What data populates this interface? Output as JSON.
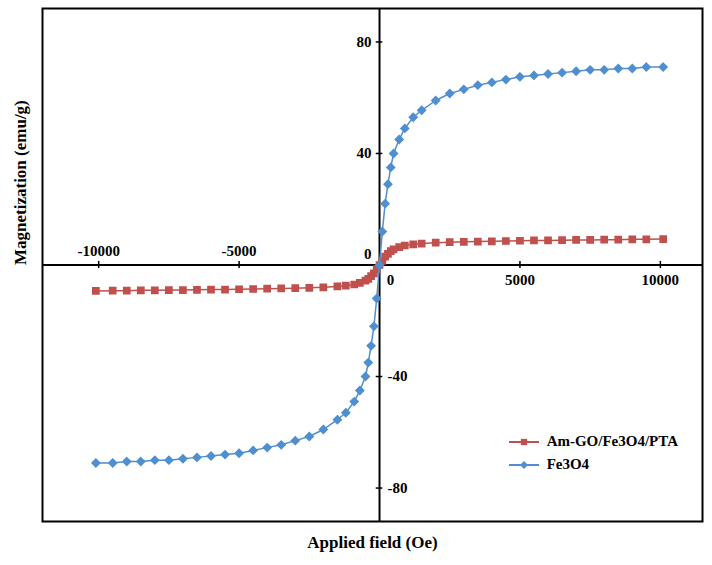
{
  "chart_data": {
    "type": "line",
    "xlabel": "Applied field (Oe)",
    "ylabel": "Magnetization (emu/g)",
    "x": [
      -10100,
      -9500,
      -9000,
      -8500,
      -8000,
      -7500,
      -7000,
      -6500,
      -6000,
      -5500,
      -5000,
      -4500,
      -4000,
      -3500,
      -3000,
      -2500,
      -2000,
      -1500,
      -1200,
      -900,
      -700,
      -500,
      -400,
      -300,
      -200,
      -100,
      0,
      100,
      200,
      300,
      400,
      500,
      700,
      900,
      1200,
      1500,
      2000,
      2500,
      3000,
      3500,
      4000,
      4500,
      5000,
      5500,
      6000,
      6500,
      7000,
      7500,
      8000,
      8500,
      9000,
      9500,
      10100
    ],
    "series": [
      {
        "name": "Am-GO/Fe3O4/PTA",
        "color": "#c0504d",
        "marker": "square",
        "values": [
          -9.3,
          -9.2,
          -9.2,
          -9.1,
          -9.1,
          -9,
          -9,
          -8.9,
          -8.8,
          -8.8,
          -8.7,
          -8.6,
          -8.5,
          -8.4,
          -8.3,
          -8.2,
          -8,
          -7.7,
          -7.4,
          -7,
          -6.4,
          -5.6,
          -5,
          -4,
          -3,
          -1.5,
          0,
          1.5,
          3,
          4,
          5,
          5.6,
          6.4,
          7,
          7.4,
          7.7,
          8,
          8.2,
          8.3,
          8.4,
          8.5,
          8.6,
          8.7,
          8.8,
          8.8,
          8.9,
          9,
          9,
          9.1,
          9.1,
          9.2,
          9.2,
          9.3
        ]
      },
      {
        "name": "Fe3O4",
        "color": "#4f8fd0",
        "marker": "diamond",
        "values": [
          -71,
          -71,
          -70.5,
          -70.5,
          -70,
          -70,
          -69.5,
          -69,
          -68.5,
          -68,
          -67.5,
          -66.5,
          -65.5,
          -64.5,
          -63,
          -61.5,
          -59,
          -55.5,
          -53,
          -49,
          -45,
          -40,
          -35,
          -29,
          -22,
          -12,
          0,
          12,
          22,
          29,
          35,
          40,
          45,
          49,
          53,
          55.5,
          59,
          61.5,
          63,
          64.5,
          65.5,
          66.5,
          67.5,
          68,
          68.5,
          69,
          69.5,
          70,
          70,
          70.5,
          70.5,
          71,
          71
        ]
      }
    ],
    "xlim": [
      -12000,
      11500
    ],
    "ylim": [
      -92,
      92
    ],
    "xticks": [
      -10000,
      -5000,
      0,
      5000,
      10000
    ],
    "yticks": [
      -80,
      -40,
      0,
      40,
      80
    ],
    "grid": false,
    "legend": "lower right"
  }
}
